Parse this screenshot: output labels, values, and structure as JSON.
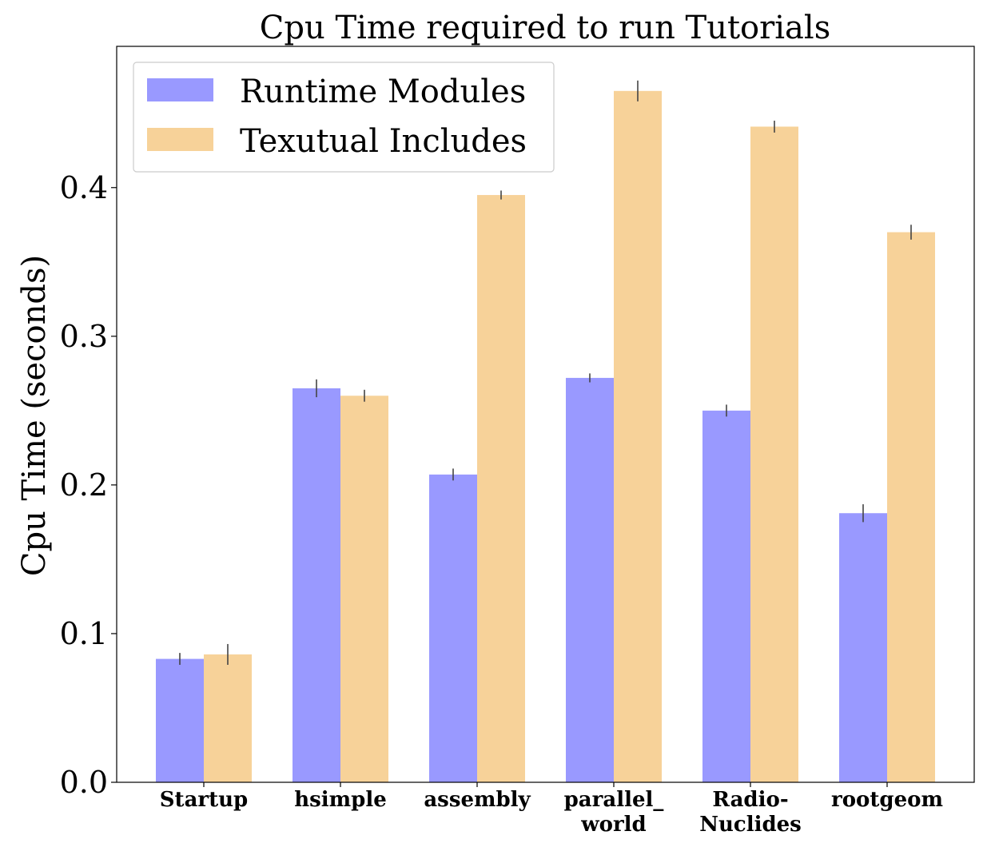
{
  "chart_data": {
    "type": "bar",
    "title": "Cpu Time required to run Tutorials",
    "xlabel": "",
    "ylabel": "Cpu Time (seconds)",
    "ylim": [
      0,
      0.495
    ],
    "yticks": [
      "0.0",
      "0.1",
      "0.2",
      "0.3",
      "0.4"
    ],
    "ytick_values": [
      0.0,
      0.1,
      0.2,
      0.3,
      0.4
    ],
    "categories": [
      [
        "Startup"
      ],
      [
        "hsimple"
      ],
      [
        "assembly"
      ],
      [
        "parallel_",
        "world"
      ],
      [
        "Radio-",
        "Nuclides"
      ],
      [
        "rootgeom"
      ]
    ],
    "series": [
      {
        "name": "Runtime Modules",
        "color": "#9999ff",
        "values": [
          0.083,
          0.265,
          0.207,
          0.272,
          0.25,
          0.181
        ],
        "errors": [
          0.004,
          0.006,
          0.004,
          0.003,
          0.004,
          0.006
        ]
      },
      {
        "name": "Texutual Includes",
        "color": "#f7d299",
        "values": [
          0.086,
          0.26,
          0.395,
          0.465,
          0.441,
          0.37
        ],
        "errors": [
          0.007,
          0.004,
          0.003,
          0.007,
          0.004,
          0.005
        ]
      }
    ],
    "legend_position": "top-left",
    "grid": false,
    "error_bar_color": "#444444"
  }
}
